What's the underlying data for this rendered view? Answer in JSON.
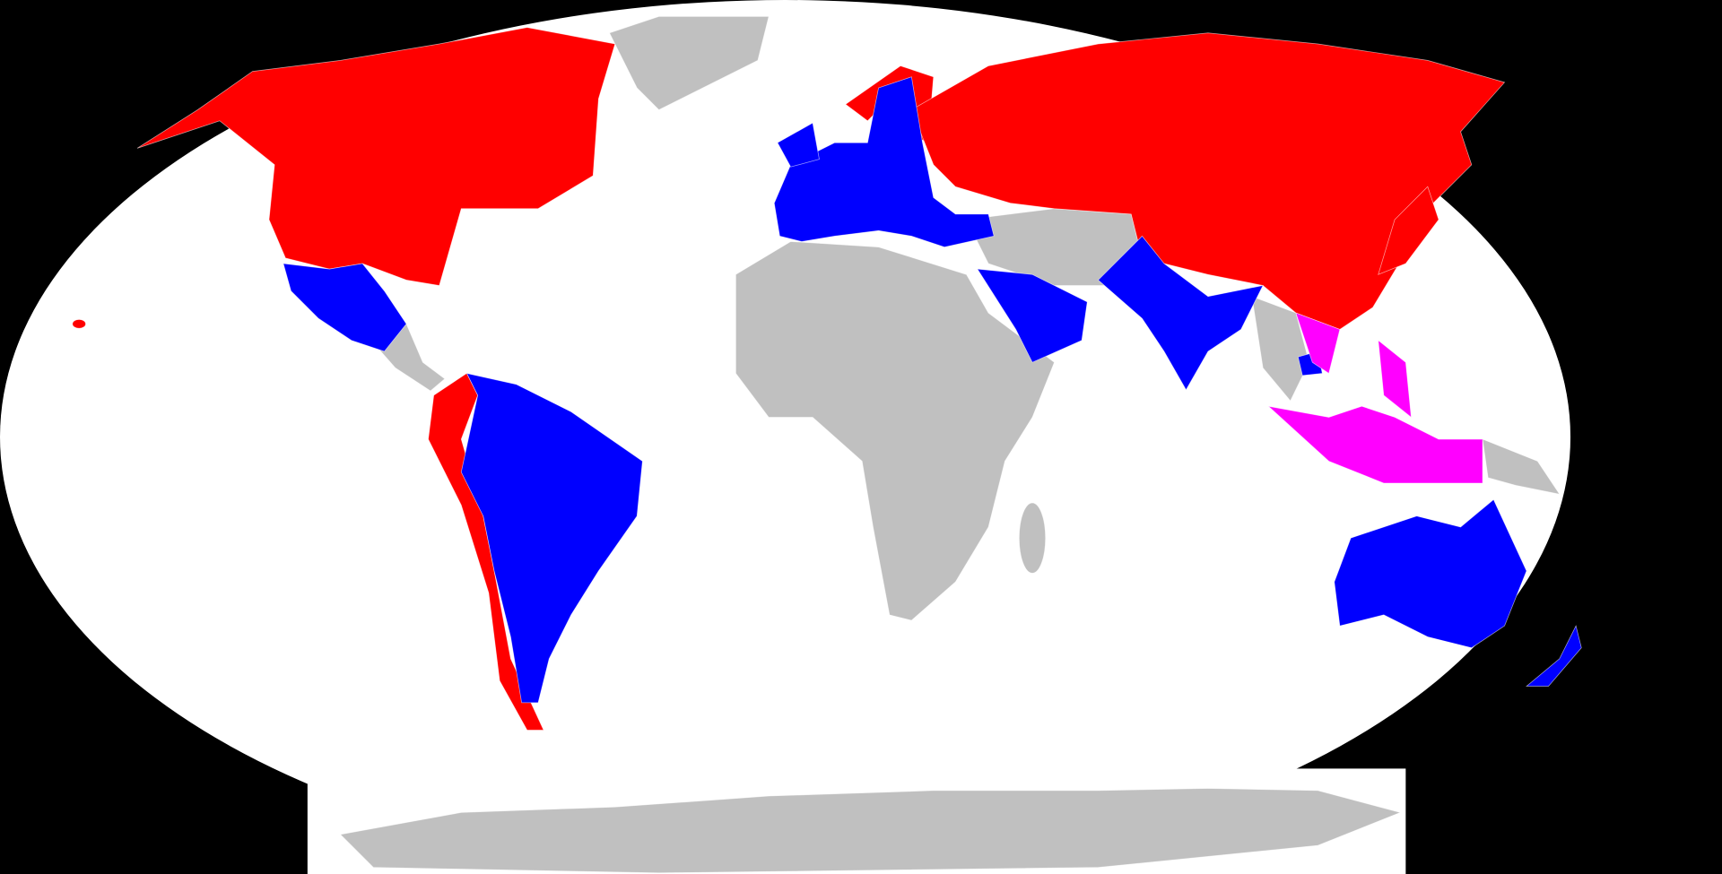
{
  "map": {
    "background_color": "#000000",
    "ocean_color": "#ffffff",
    "colors": {
      "red": "#ff0000",
      "blue": "#0000ff",
      "magenta": "#ff00ff",
      "gray": "#c0c0c0"
    }
  }
}
